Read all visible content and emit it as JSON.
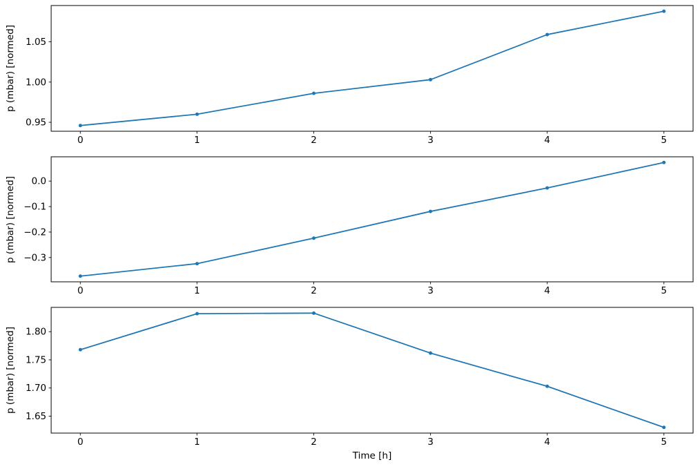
{
  "figure": {
    "background": "#ffffff",
    "accent_color": "#1f77b4",
    "axis_color": "#000000",
    "xlabel": "Time [h]",
    "ylabel": "p (mbar) [normed]"
  },
  "chart_data": [
    {
      "type": "line",
      "title": "",
      "xlabel": "",
      "ylabel": "p (mbar) [normed]",
      "x": [
        0,
        1,
        2,
        3,
        4,
        5
      ],
      "values": [
        0.946,
        0.96,
        0.986,
        1.003,
        1.059,
        1.088
      ],
      "xlim": [
        -0.25,
        5.25
      ],
      "ylim": [
        0.9389,
        1.0951
      ],
      "xticks": [
        0,
        1,
        2,
        3,
        4,
        5
      ],
      "xtick_labels": [
        "0",
        "1",
        "2",
        "3",
        "4",
        "5"
      ],
      "yticks": [
        0.95,
        1.0,
        1.05
      ],
      "ytick_labels": [
        "0.95",
        "1.00",
        "1.05"
      ],
      "grid": false,
      "legend": false,
      "marker": "circle",
      "line_color": "#1f77b4"
    },
    {
      "type": "line",
      "title": "",
      "xlabel": "",
      "ylabel": "p (mbar) [normed]",
      "x": [
        0,
        1,
        2,
        3,
        4,
        5
      ],
      "values": [
        -0.373,
        -0.324,
        -0.224,
        -0.119,
        -0.027,
        0.073
      ],
      "xlim": [
        -0.25,
        5.25
      ],
      "ylim": [
        -0.3953,
        0.0953
      ],
      "xticks": [
        0,
        1,
        2,
        3,
        4,
        5
      ],
      "xtick_labels": [
        "0",
        "1",
        "2",
        "3",
        "4",
        "5"
      ],
      "yticks": [
        0.0,
        -0.1,
        -0.2,
        -0.3
      ],
      "ytick_labels": [
        "0.0",
        "−0.1",
        "−0.2",
        "−0.3"
      ],
      "grid": false,
      "legend": false,
      "marker": "circle",
      "line_color": "#1f77b4"
    },
    {
      "type": "line",
      "title": "",
      "xlabel": "Time [h]",
      "ylabel": "p (mbar) [normed]",
      "x": [
        0,
        1,
        2,
        3,
        4,
        5
      ],
      "values": [
        1.768,
        1.832,
        1.833,
        1.762,
        1.703,
        1.63
      ],
      "xlim": [
        -0.25,
        5.25
      ],
      "ylim": [
        1.6199,
        1.8432
      ],
      "xticks": [
        0,
        1,
        2,
        3,
        4,
        5
      ],
      "xtick_labels": [
        "0",
        "1",
        "2",
        "3",
        "4",
        "5"
      ],
      "yticks": [
        1.8,
        1.75,
        1.7,
        1.65
      ],
      "ytick_labels": [
        "1.80",
        "1.75",
        "1.70",
        "1.65"
      ],
      "grid": false,
      "legend": false,
      "marker": "circle",
      "line_color": "#1f77b4"
    }
  ]
}
